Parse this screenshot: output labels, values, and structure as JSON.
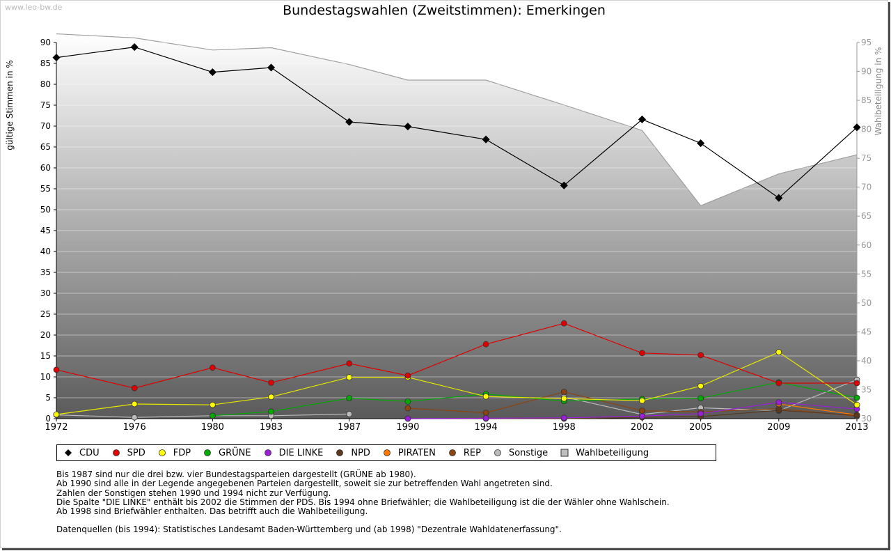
{
  "watermark": "www.leo-bw.de",
  "chart_data": {
    "type": "line",
    "title": "Bundestagswahlen (Zweitstimmen): Emerkingen",
    "ylabel": "gültige Stimmen in %",
    "y2label": "Wahlbeteiligung in %",
    "ylim": [
      0,
      90
    ],
    "y2lim": [
      30,
      95
    ],
    "yticks": [
      "0",
      "5",
      "10",
      "15",
      "20",
      "25",
      "30",
      "35",
      "40",
      "45",
      "50",
      "55",
      "60",
      "65",
      "70",
      "75",
      "80",
      "85",
      "90"
    ],
    "y2ticks": [
      "30",
      "35",
      "40",
      "45",
      "50",
      "55",
      "60",
      "65",
      "70",
      "75",
      "80",
      "85",
      "90",
      "95"
    ],
    "categories": [
      "1972",
      "1976",
      "1980",
      "1983",
      "1987",
      "1990",
      "1994",
      "1998",
      "2002",
      "2005",
      "2009",
      "2013"
    ],
    "grid": true,
    "legend_position": "bottom",
    "area": {
      "name": "Wahlbeteiligung",
      "axis": "right",
      "color": "#a0a0a0",
      "values": [
        96.5,
        95.8,
        93.7,
        94.1,
        91.2,
        88.5,
        88.5,
        84.2,
        79.8,
        66.8,
        72.3,
        75.6
      ]
    },
    "series": [
      {
        "name": "CDU",
        "color": "#000000",
        "line": "#000000",
        "marker": "diamond",
        "values": [
          86.4,
          88.9,
          82.9,
          84.0,
          71.0,
          69.9,
          66.8,
          55.8,
          71.6,
          65.9,
          52.8,
          69.7
        ]
      },
      {
        "name": "SPD",
        "color": "#e00000",
        "line": "#e00000",
        "marker": "circle",
        "values": [
          11.7,
          7.3,
          12.2,
          8.6,
          13.2,
          10.3,
          17.8,
          22.8,
          15.7,
          15.2,
          8.5,
          8.5
        ]
      },
      {
        "name": "FDP",
        "color": "#ffff00",
        "line": "#e8e800",
        "marker": "circle",
        "values": [
          1.0,
          3.5,
          3.3,
          5.2,
          9.9,
          9.9,
          5.3,
          4.8,
          4.3,
          7.8,
          15.9,
          3.3
        ]
      },
      {
        "name": "GRÜNE",
        "color": "#00aa00",
        "line": "#00aa00",
        "marker": "circle",
        "values": [
          null,
          null,
          0.7,
          1.7,
          4.9,
          4.1,
          5.9,
          4.2,
          4.7,
          4.9,
          8.7,
          5.0
        ]
      },
      {
        "name": "DIE LINKE",
        "color": "#9a1fd6",
        "line": "#9a1fd6",
        "marker": "circle",
        "values": [
          null,
          null,
          null,
          null,
          null,
          0.0,
          0.1,
          0.2,
          0.6,
          1.2,
          3.9,
          2.3
        ]
      },
      {
        "name": "NPD",
        "color": "#5a3a1e",
        "line": "#5a3a1e",
        "marker": "circle",
        "values": [
          null,
          null,
          null,
          null,
          null,
          0.0,
          0.0,
          0.0,
          0.3,
          0.5,
          2.0,
          0.8
        ]
      },
      {
        "name": "PIRATEN",
        "color": "#ff7700",
        "line": "#ff7700",
        "marker": "circle",
        "values": [
          null,
          null,
          null,
          null,
          null,
          null,
          null,
          null,
          null,
          null,
          3.5,
          0.9
        ]
      },
      {
        "name": "REP",
        "color": "#8b4513",
        "line": "#8b4513",
        "marker": "circle",
        "values": [
          null,
          null,
          null,
          null,
          null,
          2.5,
          1.4,
          6.4,
          1.9,
          1.6,
          2.4,
          0.6
        ]
      },
      {
        "name": "Sonstige",
        "color": "#bbbbbb",
        "line": "#bbbbbb",
        "marker": "circle",
        "values": [
          0.9,
          0.3,
          0.7,
          0.7,
          1.1,
          null,
          null,
          5.2,
          1.0,
          2.6,
          1.9,
          9.3
        ]
      }
    ]
  },
  "legend": [
    {
      "label": "CDU",
      "color": "#000000",
      "shape": "diamond"
    },
    {
      "label": "SPD",
      "color": "#e00000",
      "shape": "circle"
    },
    {
      "label": "FDP",
      "color": "#ffff00",
      "shape": "circle"
    },
    {
      "label": "GRÜNE",
      "color": "#00aa00",
      "shape": "circle"
    },
    {
      "label": "DIE LINKE",
      "color": "#9a1fd6",
      "shape": "circle"
    },
    {
      "label": "NPD",
      "color": "#5a3a1e",
      "shape": "circle"
    },
    {
      "label": "PIRATEN",
      "color": "#ff7700",
      "shape": "circle"
    },
    {
      "label": "REP",
      "color": "#8b4513",
      "shape": "circle"
    },
    {
      "label": "Sonstige",
      "color": "#bbbbbb",
      "shape": "circle"
    },
    {
      "label": "Wahlbeteiligung",
      "color": "#bfbfbf",
      "shape": "square"
    }
  ],
  "notes": [
    "Bis 1987 sind nur die drei bzw. vier Bundestagsparteien dargestellt (GRÜNE ab 1980).",
    "Ab 1990 sind alle in der Legende angegebenen Parteien dargestellt, soweit sie zur betreffenden Wahl angetreten sind.",
    "Zahlen der Sonstigen stehen 1990 und 1994 nicht zur Verfügung.",
    "Die Spalte \"DIE LINKE\" enthält bis 2002 die Stimmen der PDS. Bis 1994 ohne Briefwähler; die Wahlbeteiligung ist die der Wähler ohne Wahlschein.",
    "Ab 1998 sind Briefwähler enthalten. Das betrifft auch die Wahlbeteiligung."
  ],
  "source": "Datenquellen (bis 1994): Statistisches Landesamt Baden-Württemberg und (ab 1998) \"Dezentrale Wahldatenerfassung\"."
}
